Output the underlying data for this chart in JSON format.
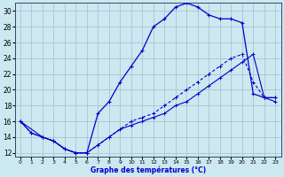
{
  "xlabel": "Graphe des températures (°C)",
  "background_color": "#cce8f0",
  "grid_color": "#aabbcc",
  "line_color": "#0000cc",
  "xlim": [
    -0.5,
    23.5
  ],
  "ylim": [
    11.5,
    31.0
  ],
  "xticks": [
    0,
    1,
    2,
    3,
    4,
    5,
    6,
    7,
    8,
    9,
    10,
    11,
    12,
    13,
    14,
    15,
    16,
    17,
    18,
    19,
    20,
    21,
    22,
    23
  ],
  "yticks": [
    12,
    14,
    16,
    18,
    20,
    22,
    24,
    26,
    28,
    30
  ],
  "line1_x": [
    0,
    1,
    2,
    3,
    4,
    5,
    6,
    7,
    8,
    9,
    10,
    11,
    12,
    13,
    14,
    15,
    16,
    17,
    18,
    19,
    20,
    21,
    22,
    23
  ],
  "line1_y": [
    16,
    14.5,
    14,
    13.5,
    12.5,
    12,
    12,
    17,
    18.5,
    21,
    23,
    25,
    28,
    29,
    30.5,
    31,
    30.5,
    29.5,
    29,
    29,
    28.5,
    19.5,
    19,
    19
  ],
  "line2_x": [
    0,
    1,
    2,
    3,
    4,
    5,
    6,
    7,
    8,
    9,
    10,
    11,
    12,
    13,
    14,
    15,
    16,
    17,
    18,
    19,
    20,
    21,
    22,
    23
  ],
  "line2_y": [
    16,
    14.5,
    14,
    13.5,
    12.5,
    12,
    12,
    13,
    14,
    15,
    16,
    16.5,
    17,
    18,
    19,
    20,
    21,
    22,
    23,
    24,
    24.5,
    21,
    19,
    19
  ],
  "line3_x": [
    0,
    2,
    3,
    4,
    5,
    6,
    7,
    8,
    9,
    10,
    11,
    12,
    13,
    14,
    15,
    16,
    17,
    18,
    19,
    20,
    21,
    22,
    23
  ],
  "line3_y": [
    16,
    14,
    13.5,
    12.5,
    12,
    12,
    13,
    14,
    15,
    15.5,
    16,
    16.5,
    17,
    18,
    18.5,
    19.5,
    20.5,
    21.5,
    22.5,
    23.5,
    24.5,
    19,
    18.5
  ]
}
